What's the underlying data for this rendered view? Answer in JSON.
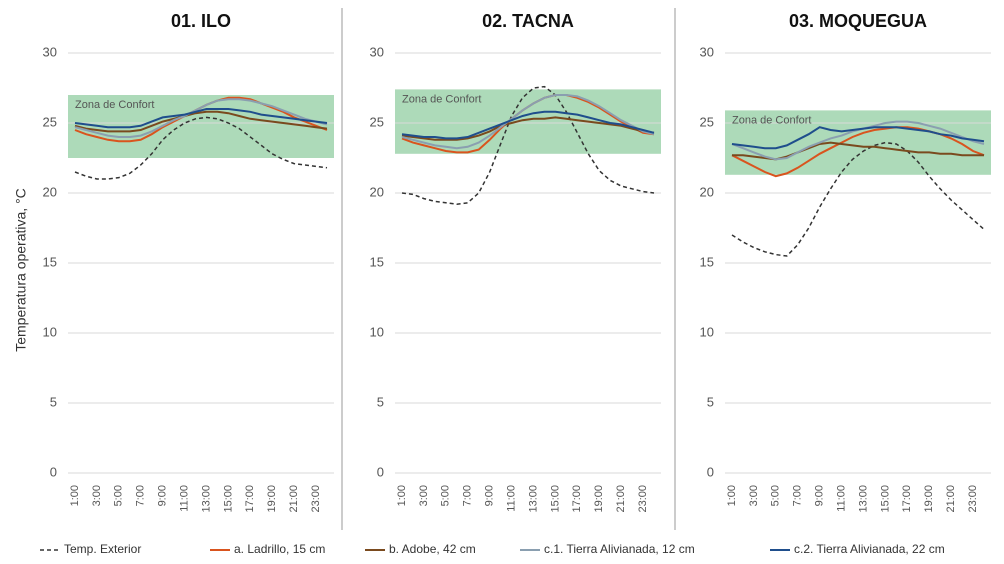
{
  "chart_data": [
    {
      "type": "line",
      "title": "01. ILO",
      "y_label": "Temperatura operativa, °C",
      "comfort_zone": {
        "label": "Zona de Confort",
        "range": [
          22.5,
          27
        ],
        "color": "#9fd4ad"
      },
      "categories": [
        "1:00",
        null,
        "3:00",
        null,
        "5:00",
        null,
        "7:00",
        null,
        "9:00",
        null,
        "11:00",
        null,
        "13:00",
        null,
        "15:00",
        null,
        "17:00",
        null,
        "19:00",
        null,
        "21:00",
        null,
        "23:00",
        null
      ],
      "ylim": [
        0,
        30
      ],
      "yticks": [
        0,
        5,
        10,
        15,
        20,
        25,
        30
      ],
      "grid": true,
      "series": [
        {
          "name": "Temp. Exterior",
          "color": "#333333",
          "dash": "dashed",
          "values": [
            21.5,
            21.2,
            21.0,
            21.0,
            21.1,
            21.4,
            22.0,
            22.8,
            23.8,
            24.5,
            25.0,
            25.3,
            25.4,
            25.3,
            25.0,
            24.6,
            24.0,
            23.4,
            22.8,
            22.4,
            22.1,
            22.0,
            21.9,
            21.8
          ]
        },
        {
          "name": "a. Ladrillo, 15 cm",
          "color": "#d9541e",
          "values": [
            24.5,
            24.2,
            24.0,
            23.8,
            23.7,
            23.7,
            23.8,
            24.2,
            24.7,
            25.1,
            25.5,
            25.9,
            26.3,
            26.6,
            26.8,
            26.8,
            26.7,
            26.4,
            26.1,
            25.8,
            25.4,
            25.1,
            24.8,
            24.5
          ]
        },
        {
          "name": "b. Adobe, 42 cm",
          "color": "#7a4a1e",
          "values": [
            24.8,
            24.6,
            24.5,
            24.4,
            24.4,
            24.4,
            24.5,
            24.8,
            25.1,
            25.3,
            25.5,
            25.7,
            25.8,
            25.8,
            25.7,
            25.5,
            25.3,
            25.2,
            25.1,
            25.0,
            24.9,
            24.8,
            24.7,
            24.6
          ]
        },
        {
          "name": "c.1. Tierra Alivianada, 12 cm",
          "color": "#8a9fb0",
          "values": [
            24.7,
            24.5,
            24.3,
            24.1,
            24.0,
            24.0,
            24.1,
            24.4,
            24.8,
            25.2,
            25.5,
            25.9,
            26.3,
            26.6,
            26.7,
            26.7,
            26.6,
            26.4,
            26.2,
            25.9,
            25.6,
            25.3,
            25.1,
            24.9
          ]
        },
        {
          "name": "c.2. Tierra Alivianada, 22 cm",
          "color": "#1f4e8c",
          "values": [
            25.0,
            24.9,
            24.8,
            24.7,
            24.7,
            24.7,
            24.8,
            25.1,
            25.4,
            25.5,
            25.6,
            25.8,
            26.0,
            26.0,
            26.0,
            25.9,
            25.8,
            25.6,
            25.5,
            25.4,
            25.3,
            25.2,
            25.1,
            25.0
          ]
        }
      ]
    },
    {
      "type": "line",
      "title": "02. TACNA",
      "comfort_zone": {
        "label": "Zona de Confort",
        "range": [
          22.8,
          27.4
        ],
        "color": "#9fd4ad"
      },
      "categories": [
        "1:00",
        null,
        "3:00",
        null,
        "5:00",
        null,
        "7:00",
        null,
        "9:00",
        null,
        "11:00",
        null,
        "13:00",
        null,
        "15:00",
        null,
        "17:00",
        null,
        "19:00",
        null,
        "21:00",
        null,
        "23:00",
        null
      ],
      "ylim": [
        0,
        30
      ],
      "yticks": [
        0,
        5,
        10,
        15,
        20,
        25,
        30
      ],
      "grid": true,
      "series": [
        {
          "color": "#333333",
          "dash": "dashed",
          "values": [
            20.0,
            19.9,
            19.6,
            19.4,
            19.3,
            19.2,
            19.3,
            20.0,
            21.5,
            23.5,
            25.5,
            26.8,
            27.5,
            27.6,
            27.0,
            25.8,
            24.3,
            22.8,
            21.6,
            20.9,
            20.5,
            20.3,
            20.1,
            20.0
          ]
        },
        {
          "color": "#d9541e",
          "values": [
            23.9,
            23.6,
            23.4,
            23.2,
            23.0,
            22.9,
            22.9,
            23.1,
            23.8,
            24.6,
            25.3,
            25.9,
            26.4,
            26.8,
            27.0,
            27.0,
            26.8,
            26.5,
            26.1,
            25.6,
            25.1,
            24.7,
            24.3,
            24.2
          ]
        },
        {
          "color": "#7a4a1e",
          "values": [
            24.1,
            24.0,
            23.9,
            23.8,
            23.8,
            23.8,
            23.9,
            24.1,
            24.4,
            24.8,
            25.0,
            25.2,
            25.3,
            25.3,
            25.4,
            25.3,
            25.2,
            25.1,
            25.0,
            24.9,
            24.8,
            24.6,
            24.4,
            24.3
          ]
        },
        {
          "color": "#8a9fb0",
          "values": [
            24.0,
            23.8,
            23.6,
            23.4,
            23.3,
            23.2,
            23.3,
            23.6,
            24.1,
            24.7,
            25.3,
            25.9,
            26.4,
            26.8,
            27.0,
            27.0,
            26.9,
            26.6,
            26.2,
            25.7,
            25.2,
            24.8,
            24.4,
            24.2
          ]
        },
        {
          "color": "#1f4e8c",
          "values": [
            24.2,
            24.1,
            24.0,
            24.0,
            23.9,
            23.9,
            24.0,
            24.3,
            24.6,
            24.9,
            25.2,
            25.5,
            25.7,
            25.8,
            25.8,
            25.7,
            25.6,
            25.4,
            25.2,
            25.0,
            24.9,
            24.7,
            24.5,
            24.3
          ]
        }
      ]
    },
    {
      "type": "line",
      "title": "03. MOQUEGUA",
      "comfort_zone": {
        "label": "Zona de Confort",
        "range": [
          21.3,
          25.9
        ],
        "color": "#9fd4ad"
      },
      "categories": [
        "1:00",
        null,
        "3:00",
        null,
        "5:00",
        null,
        "7:00",
        null,
        "9:00",
        null,
        "11:00",
        null,
        "13:00",
        null,
        "15:00",
        null,
        "17:00",
        null,
        "19:00",
        null,
        "21:00",
        null,
        "23:00",
        null
      ],
      "ylim": [
        0,
        30
      ],
      "yticks": [
        0,
        5,
        10,
        15,
        20,
        25,
        30
      ],
      "grid": true,
      "series": [
        {
          "color": "#333333",
          "dash": "dashed",
          "values": [
            17.0,
            16.5,
            16.1,
            15.8,
            15.6,
            15.5,
            16.3,
            17.5,
            19.0,
            20.3,
            21.5,
            22.4,
            23.0,
            23.4,
            23.6,
            23.5,
            23.0,
            22.2,
            21.2,
            20.3,
            19.5,
            18.8,
            18.1,
            17.4
          ]
        },
        {
          "color": "#d9541e",
          "values": [
            22.7,
            22.3,
            21.9,
            21.5,
            21.2,
            21.4,
            21.8,
            22.3,
            22.8,
            23.2,
            23.6,
            24.0,
            24.3,
            24.5,
            24.6,
            24.7,
            24.7,
            24.6,
            24.4,
            24.2,
            23.9,
            23.5,
            23.0,
            22.7
          ]
        },
        {
          "color": "#7a4a1e",
          "values": [
            22.7,
            22.7,
            22.6,
            22.5,
            22.4,
            22.6,
            22.9,
            23.2,
            23.5,
            23.6,
            23.5,
            23.4,
            23.3,
            23.3,
            23.2,
            23.1,
            23.0,
            22.9,
            22.9,
            22.8,
            22.8,
            22.7,
            22.7,
            22.7
          ]
        },
        {
          "color": "#8a9fb0",
          "values": [
            23.5,
            23.2,
            22.9,
            22.6,
            22.4,
            22.5,
            22.9,
            23.3,
            23.6,
            23.9,
            24.1,
            24.4,
            24.6,
            24.8,
            25.0,
            25.1,
            25.1,
            25.0,
            24.8,
            24.6,
            24.3,
            24.0,
            23.7,
            23.5
          ]
        },
        {
          "color": "#1f4e8c",
          "values": [
            23.5,
            23.4,
            23.3,
            23.2,
            23.2,
            23.4,
            23.8,
            24.2,
            24.7,
            24.5,
            24.4,
            24.5,
            24.6,
            24.7,
            24.7,
            24.7,
            24.6,
            24.5,
            24.4,
            24.2,
            24.1,
            23.9,
            23.8,
            23.7
          ]
        }
      ]
    }
  ]
}
